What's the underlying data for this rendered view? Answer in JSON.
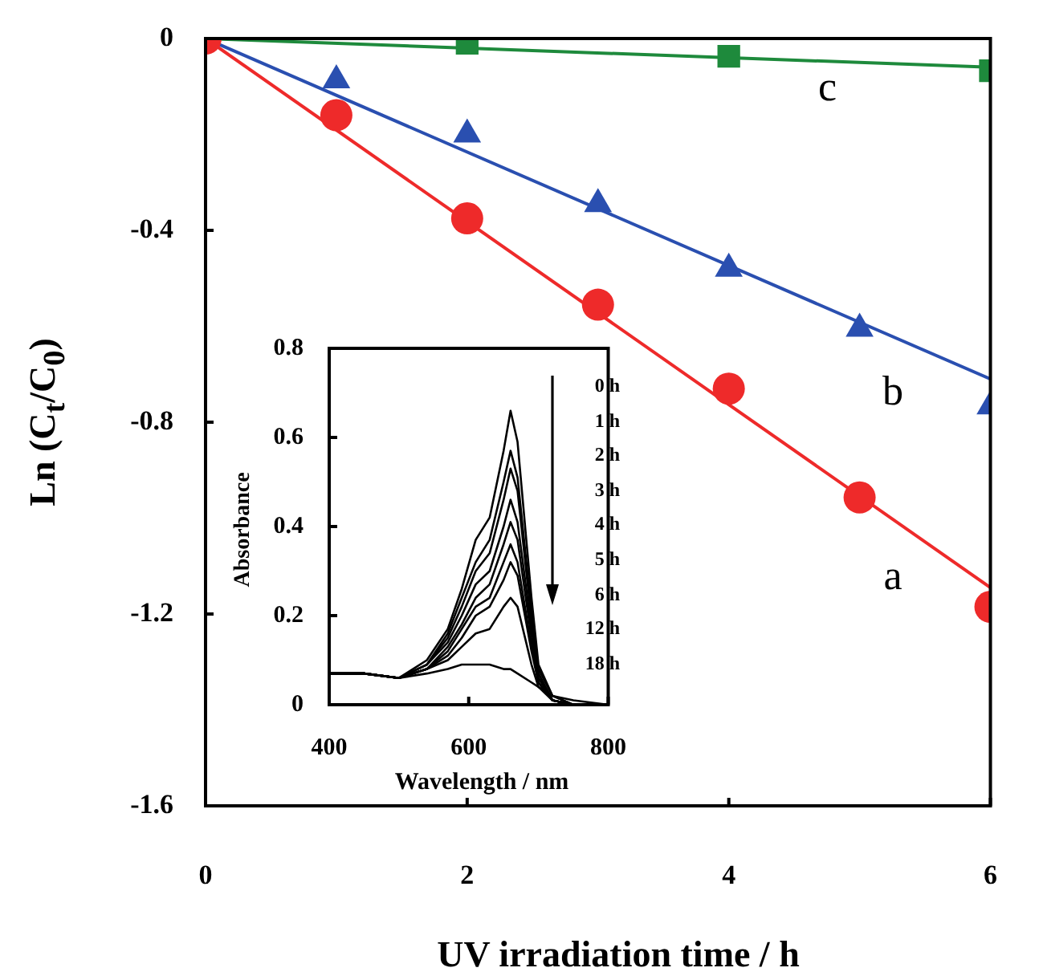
{
  "chart_data": [
    {
      "type": "scatter",
      "xlabel": "UV irradiation time / h",
      "ylabel": "Ln (C$_{t}$/C$_{0}$)",
      "xlim": [
        0,
        6
      ],
      "xticks": [
        0,
        2,
        4,
        6
      ],
      "ylim": [
        -1.6,
        0
      ],
      "yticks": [
        -1.6,
        -1.2,
        -0.8,
        -0.4,
        0
      ],
      "series": [
        {
          "name": "a",
          "type": "scatter",
          "marker": "circle",
          "color": "#ee2a2a",
          "x": [
            0,
            1,
            2,
            3,
            4,
            5,
            6
          ],
          "values": [
            0,
            -0.16,
            -0.375,
            -0.555,
            -0.73,
            -0.957,
            -1.185
          ]
        },
        {
          "name": "b",
          "type": "scatter",
          "marker": "triangle",
          "color": "#2a4fb0",
          "x": [
            1,
            2,
            3,
            4,
            5,
            6
          ],
          "values": [
            -0.087,
            -0.2,
            -0.345,
            -0.48,
            -0.605,
            -0.767
          ]
        },
        {
          "name": "c",
          "type": "scatter",
          "marker": "square",
          "color": "#1e8a3c",
          "x": [
            2,
            4,
            6
          ],
          "values": [
            -0.01,
            -0.037,
            -0.067
          ]
        },
        {
          "type": "line",
          "color": "#ee2a2a",
          "x": [
            0,
            6
          ],
          "values": [
            0,
            -1.145
          ]
        },
        {
          "type": "line",
          "color": "#2a4fb0",
          "x": [
            0,
            6
          ],
          "values": [
            0,
            -0.71
          ]
        },
        {
          "type": "line",
          "color": "#1e8a3c",
          "x": [
            0,
            6
          ],
          "values": [
            0,
            -0.06
          ]
        }
      ]
    },
    {
      "type": "line",
      "xlabel": "Wavelength / nm",
      "ylabel": "Absorbance",
      "xlim": [
        400,
        800
      ],
      "xticks": [
        400,
        600,
        800
      ],
      "ylim": [
        0,
        0.8
      ],
      "yticks": [
        0,
        0.2,
        0.4,
        0.6,
        0.8
      ],
      "annotations": [
        "0 h",
        "1 h",
        "2 h",
        "3 h",
        "4 h",
        "5 h",
        "6 h",
        "12 h",
        "18 h"
      ],
      "x": [
        400,
        450,
        500,
        540,
        570,
        590,
        610,
        630,
        650,
        660,
        670,
        690,
        700,
        720,
        750,
        800
      ],
      "series": [
        {
          "color": "#000000",
          "values": [
            0.07,
            0.07,
            0.06,
            0.1,
            0.17,
            0.26,
            0.37,
            0.42,
            0.57,
            0.66,
            0.59,
            0.24,
            0.09,
            0.02,
            0,
            0
          ]
        },
        {
          "color": "#000000",
          "values": [
            0.07,
            0.07,
            0.06,
            0.09,
            0.16,
            0.24,
            0.32,
            0.37,
            0.5,
            0.57,
            0.51,
            0.21,
            0.08,
            0.02,
            0,
            0
          ]
        },
        {
          "color": "#000000",
          "values": [
            0.07,
            0.07,
            0.06,
            0.09,
            0.15,
            0.22,
            0.3,
            0.34,
            0.46,
            0.53,
            0.48,
            0.19,
            0.07,
            0.01,
            0,
            0
          ]
        },
        {
          "color": "#000000",
          "values": [
            0.07,
            0.07,
            0.06,
            0.09,
            0.14,
            0.2,
            0.27,
            0.3,
            0.4,
            0.46,
            0.41,
            0.17,
            0.07,
            0.01,
            0,
            0
          ]
        },
        {
          "color": "#000000",
          "values": [
            0.07,
            0.07,
            0.06,
            0.08,
            0.13,
            0.18,
            0.24,
            0.27,
            0.36,
            0.41,
            0.37,
            0.15,
            0.06,
            0.01,
            0,
            0
          ]
        },
        {
          "color": "#000000",
          "values": [
            0.07,
            0.07,
            0.06,
            0.08,
            0.12,
            0.17,
            0.22,
            0.24,
            0.32,
            0.36,
            0.32,
            0.13,
            0.05,
            0.01,
            0,
            0
          ]
        },
        {
          "color": "#000000",
          "values": [
            0.07,
            0.07,
            0.06,
            0.08,
            0.11,
            0.15,
            0.2,
            0.22,
            0.28,
            0.32,
            0.29,
            0.12,
            0.05,
            0.01,
            0,
            0
          ]
        },
        {
          "color": "#000000",
          "values": [
            0.07,
            0.07,
            0.06,
            0.08,
            0.1,
            0.13,
            0.16,
            0.17,
            0.22,
            0.24,
            0.22,
            0.09,
            0.04,
            0.01,
            0,
            0
          ]
        },
        {
          "color": "#000000",
          "values": [
            0.07,
            0.07,
            0.06,
            0.07,
            0.08,
            0.09,
            0.09,
            0.09,
            0.08,
            0.08,
            0.07,
            0.05,
            0.04,
            0.02,
            0.01,
            0
          ]
        }
      ]
    }
  ]
}
